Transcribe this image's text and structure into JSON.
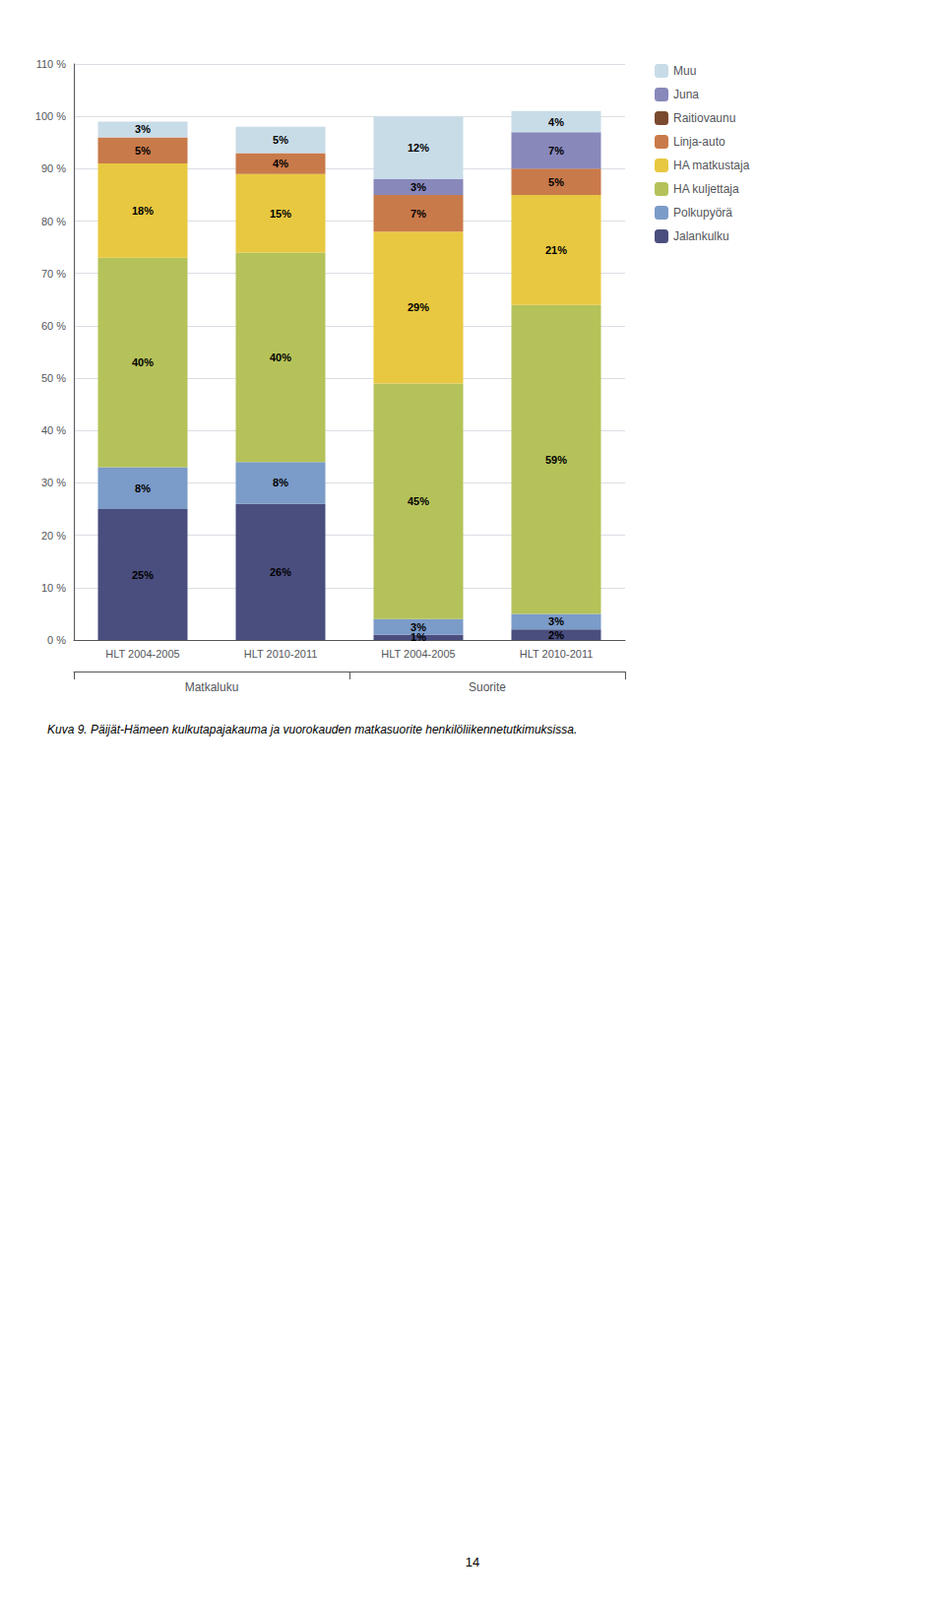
{
  "chart_data": {
    "type": "bar",
    "stacked": true,
    "data_labels": true,
    "grid": true,
    "legend": "right",
    "categories": [
      "HLT 2004-2005",
      "HLT 2010-2011",
      "HLT 2004-2005",
      "HLT 2010-2011"
    ],
    "groups": [
      "Matkaluku",
      "Matkaluku",
      "Suorite",
      "Suorite"
    ],
    "series": [
      {
        "name": "Jalankulku",
        "color": "#4a4e7e",
        "values": [
          25,
          26,
          1,
          2
        ],
        "value_labels": [
          "25%",
          "26%",
          "1%",
          "2%"
        ]
      },
      {
        "name": "Polkupyörä",
        "color": "#7b9bc8",
        "values": [
          8,
          8,
          3,
          3
        ],
        "value_labels": [
          "8%",
          "8%",
          "3%",
          "3%"
        ]
      },
      {
        "name": "HA kuljettaja",
        "color": "#b5c25a",
        "values": [
          40,
          40,
          45,
          59
        ],
        "value_labels": [
          "40%",
          "40%",
          "45%",
          "59%"
        ]
      },
      {
        "name": "HA matkustaja",
        "color": "#e8c840",
        "values": [
          18,
          15,
          29,
          21
        ],
        "value_labels": [
          "18%",
          "15%",
          "29%",
          "21%"
        ]
      },
      {
        "name": "Linja-auto",
        "color": "#c97a4a",
        "values": [
          5,
          4,
          7,
          5
        ],
        "value_labels": [
          "5%",
          "4%",
          "7%",
          "5%"
        ]
      },
      {
        "name": "Raitiovaunu",
        "color": "#7a4a2e",
        "values": [
          0,
          0,
          0,
          0
        ],
        "value_labels": [
          null,
          null,
          null,
          null
        ]
      },
      {
        "name": "Juna",
        "color": "#8888bb",
        "values": [
          0,
          0,
          3,
          7
        ],
        "value_labels": [
          null,
          null,
          "3%",
          "7%"
        ]
      },
      {
        "name": "Muu",
        "color": "#c8dce8",
        "values": [
          3,
          5,
          12,
          4
        ],
        "value_labels": [
          "3%",
          "5%",
          "12%",
          "4%"
        ]
      }
    ],
    "ylim": [
      0,
      110
    ],
    "yticks": [
      {
        "value": 0,
        "label": "0 %"
      },
      {
        "value": 10,
        "label": "10 %"
      },
      {
        "value": 20,
        "label": "20 %"
      },
      {
        "value": 30,
        "label": "30 %"
      },
      {
        "value": 40,
        "label": "40 %"
      },
      {
        "value": 50,
        "label": "50 %"
      },
      {
        "value": 60,
        "label": "60 %"
      },
      {
        "value": 70,
        "label": "70 %"
      },
      {
        "value": 80,
        "label": "80 %"
      },
      {
        "value": 90,
        "label": "90 %"
      },
      {
        "value": 100,
        "label": "100 %"
      },
      {
        "value": 110,
        "label": "110 %"
      }
    ],
    "annotations": [
      "Kuva 9. Päijät-Hämeen kulkutapajakauma ja vuorokauden matkasuorite henkilöliikennetutkimuksissa.",
      "14"
    ]
  }
}
